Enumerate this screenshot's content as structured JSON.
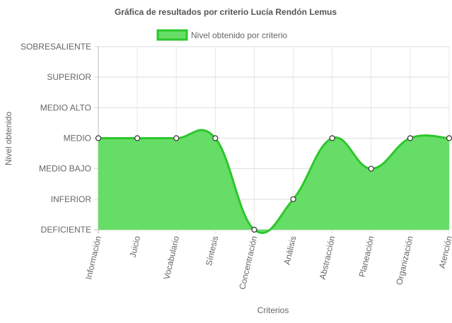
{
  "chart_data": {
    "type": "area",
    "title": "Gráfica de resultados por criterio Lucía Rendón Lemus",
    "xlabel": "Criterios",
    "ylabel": "Nivel obtenido",
    "legend": {
      "label": "Nivel obtenido por criterio",
      "position": "top"
    },
    "y_levels": [
      "DEFICIENTE",
      "INFERIOR",
      "MEDIO BAJO",
      "MEDIO",
      "MEDIO ALTO",
      "SUPERIOR",
      "SOBRESALIENTE"
    ],
    "ylim": [
      0,
      6
    ],
    "grid": true,
    "categories": [
      "Información",
      "Juicio",
      "Vocabulario",
      "Síntesis",
      "Concentración",
      "Análisis",
      "Abstracción",
      "Planeación",
      "Organización",
      "Atención"
    ],
    "series": [
      {
        "name": "Nivel obtenido por criterio",
        "values": [
          3,
          3,
          3,
          3,
          0,
          1,
          3,
          2,
          3,
          3
        ],
        "line_color": "#2cc72c",
        "fill_color": "#66dd66",
        "point_fill": "#ffffff",
        "point_stroke": "#333333"
      }
    ]
  }
}
